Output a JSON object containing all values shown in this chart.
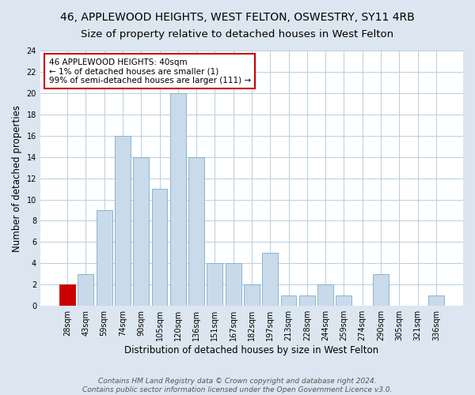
{
  "title": "46, APPLEWOOD HEIGHTS, WEST FELTON, OSWESTRY, SY11 4RB",
  "subtitle": "Size of property relative to detached houses in West Felton",
  "xlabel": "Distribution of detached houses by size in West Felton",
  "ylabel": "Number of detached properties",
  "categories": [
    "28sqm",
    "43sqm",
    "59sqm",
    "74sqm",
    "90sqm",
    "105sqm",
    "120sqm",
    "136sqm",
    "151sqm",
    "167sqm",
    "182sqm",
    "197sqm",
    "213sqm",
    "228sqm",
    "244sqm",
    "259sqm",
    "274sqm",
    "290sqm",
    "305sqm",
    "321sqm",
    "336sqm"
  ],
  "values": [
    2,
    3,
    9,
    16,
    14,
    11,
    20,
    14,
    4,
    4,
    2,
    5,
    1,
    1,
    2,
    1,
    0,
    3,
    0,
    0,
    1
  ],
  "bar_color": "#c9daea",
  "bar_edge_color": "#7aaec8",
  "highlight_bar_index": 0,
  "highlight_color": "#cc0000",
  "annotation_box_text": "46 APPLEWOOD HEIGHTS: 40sqm\n← 1% of detached houses are smaller (1)\n99% of semi-detached houses are larger (111) →",
  "annotation_box_color": "#ffffff",
  "annotation_box_edge_color": "#cc0000",
  "ylim": [
    0,
    24
  ],
  "yticks": [
    0,
    2,
    4,
    6,
    8,
    10,
    12,
    14,
    16,
    18,
    20,
    22,
    24
  ],
  "footer_line1": "Contains HM Land Registry data © Crown copyright and database right 2024.",
  "footer_line2": "Contains public sector information licensed under the Open Government Licence v3.0.",
  "background_color": "#dce6f0",
  "plot_background_color": "#ffffff",
  "grid_color": "#b8cfe0",
  "title_fontsize": 10,
  "subtitle_fontsize": 9.5,
  "axis_label_fontsize": 8.5,
  "tick_fontsize": 7,
  "annotation_fontsize": 7.5,
  "footer_fontsize": 6.5
}
